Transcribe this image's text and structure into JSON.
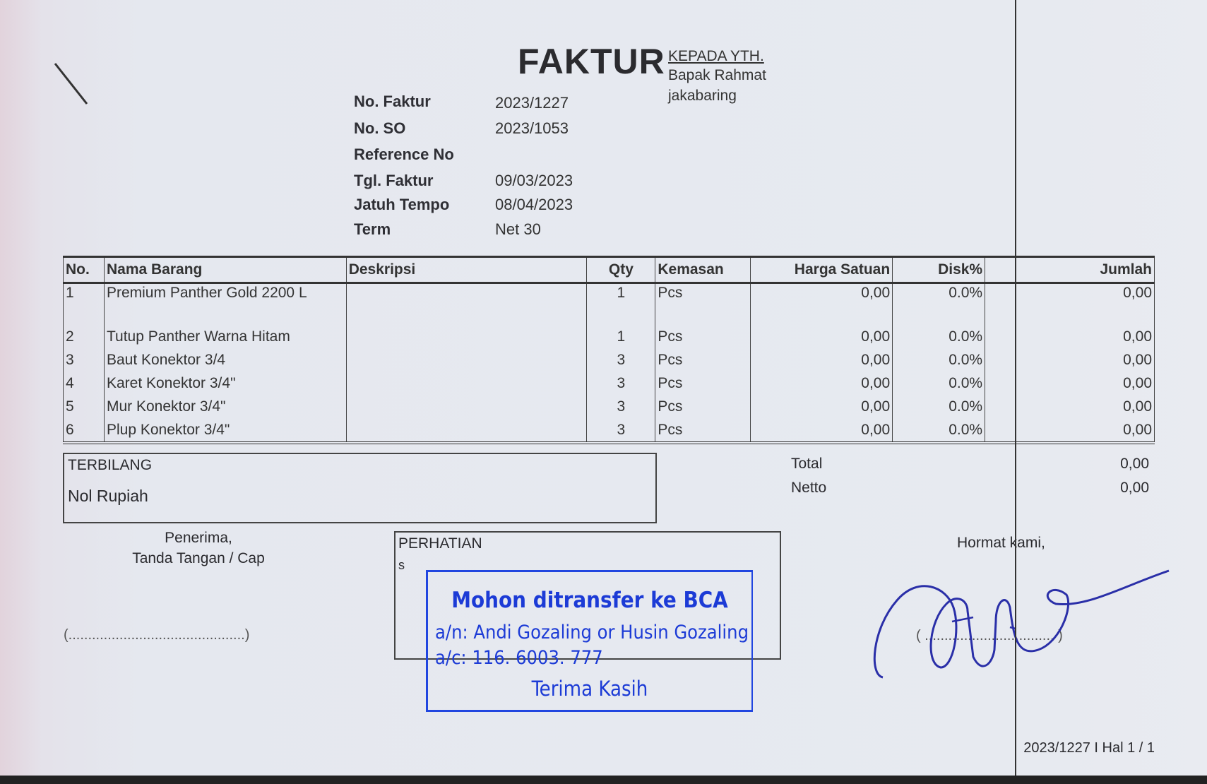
{
  "document": {
    "title": "FAKTUR",
    "recipient": {
      "label": "KEPADA YTH.",
      "name": "Bapak Rahmat",
      "address": "jakabaring"
    },
    "header_fields": [
      {
        "label": "No. Faktur",
        "value": "2023/1227"
      },
      {
        "label": "No. SO",
        "value": "2023/1053"
      },
      {
        "label": "Reference No",
        "value": ""
      },
      {
        "label": "Tgl. Faktur",
        "value": "09/03/2023"
      },
      {
        "label": "Jatuh Tempo",
        "value": "08/04/2023"
      },
      {
        "label": "Term",
        "value": "Net 30"
      }
    ],
    "table": {
      "columns": [
        "No.",
        "Nama Barang",
        "Deskripsi",
        "Qty",
        "Kemasan",
        "Harga Satuan",
        "Disk%",
        "Jumlah"
      ],
      "rows": [
        {
          "no": "1",
          "nama": "Premium Panther Gold 2200 L",
          "deskripsi": "",
          "qty": "1",
          "kemasan": "Pcs",
          "harga": "0,00",
          "disk": "0.0%",
          "jumlah": "0,00"
        },
        {
          "no": "2",
          "nama": "Tutup Panther Warna Hitam",
          "deskripsi": "",
          "qty": "1",
          "kemasan": "Pcs",
          "harga": "0,00",
          "disk": "0.0%",
          "jumlah": "0,00"
        },
        {
          "no": "3",
          "nama": "Baut Konektor 3/4",
          "deskripsi": "",
          "qty": "3",
          "kemasan": "Pcs",
          "harga": "0,00",
          "disk": "0.0%",
          "jumlah": "0,00"
        },
        {
          "no": "4",
          "nama": "Karet Konektor 3/4\"",
          "deskripsi": "",
          "qty": "3",
          "kemasan": "Pcs",
          "harga": "0,00",
          "disk": "0.0%",
          "jumlah": "0,00"
        },
        {
          "no": "5",
          "nama": "Mur Konektor 3/4\"",
          "deskripsi": "",
          "qty": "3",
          "kemasan": "Pcs",
          "harga": "0,00",
          "disk": "0.0%",
          "jumlah": "0,00"
        },
        {
          "no": "6",
          "nama": "Plup Konektor 3/4\"",
          "deskripsi": "",
          "qty": "3",
          "kemasan": "Pcs",
          "harga": "0,00",
          "disk": "0.0%",
          "jumlah": "0,00"
        }
      ]
    },
    "terbilang": {
      "label": "TERBILANG",
      "value": "Nol Rupiah"
    },
    "totals": [
      {
        "label": "Total",
        "value": "0,00"
      },
      {
        "label": "Netto",
        "value": "0,00"
      }
    ],
    "receiver": {
      "line1": "Penerima,",
      "line2": "Tanda Tangan / Cap",
      "sign_line": "(.............................................)"
    },
    "perhatian": {
      "label": "PERHATIAN",
      "text": "s"
    },
    "stamp": {
      "line1": "Mohon ditransfer ke BCA",
      "line2": "a/n: Andi Gozaling or Husin Gozaling",
      "line3": "a/c: 116. 6003. 777",
      "line4": "Terima Kasih",
      "color": "#1c3bd6"
    },
    "sender": {
      "label": "Hormat kami,",
      "sign_line": "( ................................. )"
    },
    "footer": "2023/1227 I Hal 1 / 1"
  }
}
